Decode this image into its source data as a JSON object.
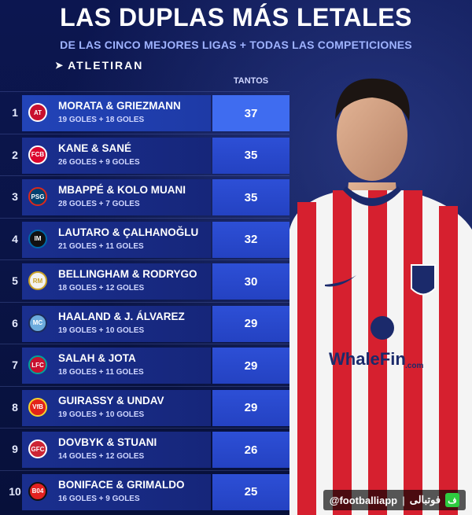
{
  "title": "LAS DUPLAS MÁS LETALES",
  "subtitle": "DE LAS CINCO MEJORES LIGAS + TODAS LAS COMPETICIONES",
  "brand": "ATLETIRAN",
  "column_header": "TANTOS",
  "rows": [
    {
      "rank": "1",
      "pair": "MORATA & GRIEZMANN",
      "goals": "19 GOLES + 18 GOLES",
      "tantos": "37",
      "badge_color": "#c8102e",
      "badge_icon": "atletico-madrid-crest"
    },
    {
      "rank": "2",
      "pair": "KANE & SANÉ",
      "goals": "26 GOLES + 9 GOLES",
      "tantos": "35",
      "badge_color": "#dc052d",
      "badge_icon": "bayern-munich-crest"
    },
    {
      "rank": "3",
      "pair": "MBAPPÉ & KOLO MUANI",
      "goals": "28 GOLES + 7 GOLES",
      "tantos": "35",
      "badge_color": "#004170",
      "badge_icon": "psg-crest"
    },
    {
      "rank": "4",
      "pair": "LAUTARO & ÇALHANOĞLU",
      "goals": "21 GOLES + 11 GOLES",
      "tantos": "32",
      "badge_color": "#111111",
      "badge_icon": "inter-milan-crest"
    },
    {
      "rank": "5",
      "pair": "BELLINGHAM & RODRYGO",
      "goals": "18 GOLES + 12 GOLES",
      "tantos": "30",
      "badge_color": "#f2f2f2",
      "badge_icon": "real-madrid-crest"
    },
    {
      "rank": "6",
      "pair": "HAALAND & J. ÁLVAREZ",
      "goals": "19 GOLES + 10 GOLES",
      "tantos": "29",
      "badge_color": "#6cabdd",
      "badge_icon": "manchester-city-crest"
    },
    {
      "rank": "7",
      "pair": "SALAH & JOTA",
      "goals": "18 GOLES + 11 GOLES",
      "tantos": "29",
      "badge_color": "#c8102e",
      "badge_icon": "liverpool-crest"
    },
    {
      "rank": "8",
      "pair": "GUIRASSY & UNDAV",
      "goals": "19 GOLES + 10 GOLES",
      "tantos": "29",
      "badge_color": "#e32219",
      "badge_icon": "stuttgart-crest"
    },
    {
      "rank": "9",
      "pair": "DOVBYK & STUANI",
      "goals": "14 GOLES + 12 GOLES",
      "tantos": "26",
      "badge_color": "#cd2534",
      "badge_icon": "girona-crest"
    },
    {
      "rank": "10",
      "pair": "BONIFACE & GRIMALDO",
      "goals": "16 GOLES + 9 GOLES",
      "tantos": "25",
      "badge_color": "#e32221",
      "badge_icon": "leverkusen-crest"
    }
  ],
  "player": {
    "sponsor": "WhaleFin",
    "sponsor_suffix": ".com",
    "shirt_red": "#d6202f",
    "shirt_white": "#f4f4f4"
  },
  "watermark": {
    "handle": "@footballiapp",
    "persian": "فوتبالی",
    "logo_letter": "ف"
  }
}
